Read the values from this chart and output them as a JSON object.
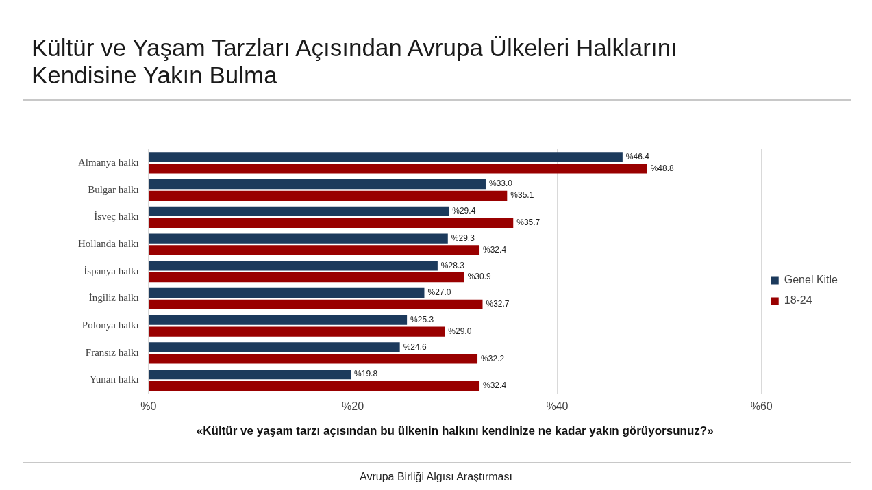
{
  "chart_data": {
    "type": "bar",
    "orientation": "horizontal",
    "title": "Kültür ve Yaşam Tarzları Açısından Avrupa Ülkeleri Halklarını Kendisine Yakın Bulma",
    "xlabel": "«Kültür ve yaşam tarzı açısından bu ülkenin halkını kendinize ne kadar yakın görüyorsunuz?»",
    "categories": [
      "Almanya halkı",
      "Bulgar halkı",
      "İsveç halkı",
      "Hollanda halkı",
      "İspanya halkı",
      "İngiliz halkı",
      "Polonya halkı",
      "Fransız halkı",
      "Yunan halkı"
    ],
    "series": [
      {
        "name": "Genel Kitle",
        "color": "#1c3a5c",
        "values": [
          46.4,
          33.0,
          29.4,
          29.3,
          28.3,
          27.0,
          25.3,
          24.6,
          19.8
        ],
        "value_labels": [
          "%46.4",
          "%33.0",
          "%29.4",
          "%29.3",
          "%28.3",
          "%27.0",
          "%25.3",
          "%24.6",
          "%19.8"
        ]
      },
      {
        "name": "18-24",
        "color": "#990000",
        "values": [
          48.8,
          35.1,
          35.7,
          32.4,
          30.9,
          32.7,
          29.0,
          32.2,
          32.4
        ],
        "value_labels": [
          "%48.8",
          "%35.1",
          "%35.7",
          "%32.4",
          "%30.9",
          "%32.7",
          "%29.0",
          "%32.2",
          "%32.4"
        ]
      }
    ],
    "xlim": [
      0,
      60
    ],
    "xticks": [
      {
        "value": 0,
        "label": "%0"
      },
      {
        "value": 20,
        "label": "%20"
      },
      {
        "value": 40,
        "label": "%40"
      },
      {
        "value": 60,
        "label": "%60"
      }
    ],
    "grid": "x",
    "legend": "right",
    "annotations": [
      "Avrupa Birliği Algısı Araştırması"
    ]
  }
}
